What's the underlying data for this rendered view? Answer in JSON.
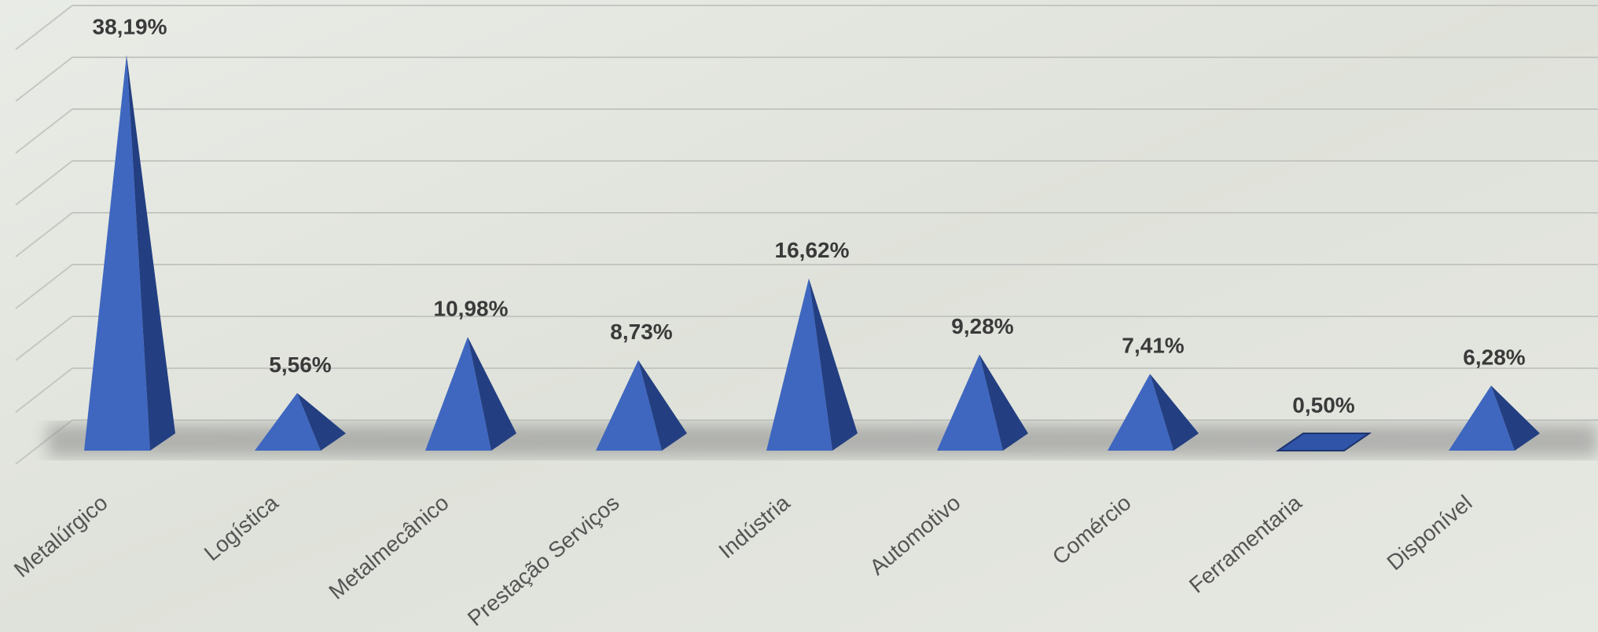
{
  "chart_data": {
    "type": "pyramid",
    "categories": [
      "Metalúrgico",
      "Logística",
      "Metalmecânico",
      "Prestação Serviços",
      "Indústria",
      "Automotivo",
      "Comércio",
      "Ferramentaria",
      "Disponível"
    ],
    "values": [
      38.19,
      5.56,
      10.98,
      8.73,
      16.62,
      9.28,
      7.41,
      0.5,
      6.28
    ],
    "value_labels": [
      "38,19%",
      "5,56%",
      "10,98%",
      "8,73%",
      "16,62%",
      "9,28%",
      "7,41%",
      "0,50%",
      "6,28%"
    ],
    "color": "#3f67c0",
    "ylim": [
      0,
      40
    ],
    "yticks": [
      0,
      5,
      10,
      15,
      20,
      25,
      30,
      35,
      40
    ],
    "grid": true
  }
}
